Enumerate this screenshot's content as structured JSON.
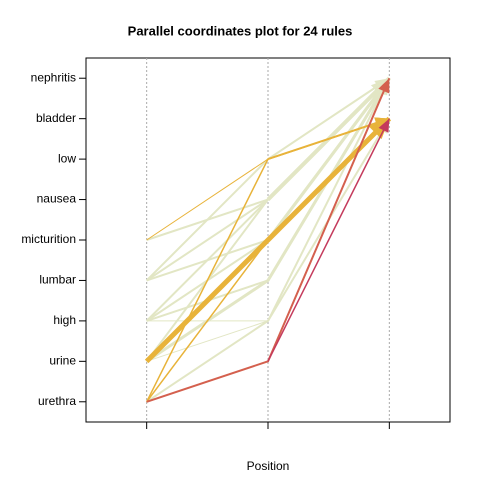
{
  "chart_data": {
    "type": "parallel",
    "title": "Parallel coordinates plot for 24 rules",
    "xlabel": "Position",
    "x": [
      1,
      2,
      3
    ],
    "xlim": [
      0.5,
      3.5
    ],
    "xticks": [
      1,
      2,
      3
    ],
    "ylim": [
      -0.5,
      8.5
    ],
    "yticks": [
      {
        "value": 0,
        "label": "urethra"
      },
      {
        "value": 1,
        "label": "urine"
      },
      {
        "value": 2,
        "label": "high"
      },
      {
        "value": 3,
        "label": "lumbar"
      },
      {
        "value": 4,
        "label": "micturition"
      },
      {
        "value": 5,
        "label": "nausea"
      },
      {
        "value": 6,
        "label": "low"
      },
      {
        "value": 7,
        "label": "bladder"
      },
      {
        "value": 8,
        "label": "nephritis"
      }
    ],
    "series": [
      {
        "color": "#e2e6c4",
        "width": 2,
        "values": [
          1,
          5,
          8
        ]
      },
      {
        "color": "#e2e6c4",
        "width": 2,
        "values": [
          2,
          5,
          8
        ]
      },
      {
        "color": "#e2e6c4",
        "width": 2,
        "values": [
          3,
          5,
          8
        ]
      },
      {
        "color": "#e2e6c4",
        "width": 3,
        "values": [
          1,
          3,
          8
        ]
      },
      {
        "color": "#e2e6c4",
        "width": 2,
        "values": [
          2,
          3,
          8
        ]
      },
      {
        "color": "#e2e6c4",
        "width": 2,
        "values": [
          3,
          4,
          8
        ]
      },
      {
        "color": "#e2e6c4",
        "width": 3,
        "values": [
          1,
          4,
          8
        ]
      },
      {
        "color": "#e2e6c4",
        "width": 1,
        "values": [
          2,
          2,
          8
        ]
      },
      {
        "color": "#e2e6c4",
        "width": 2,
        "values": [
          0,
          2,
          8
        ]
      },
      {
        "color": "#e2e6c4",
        "width": 1,
        "values": [
          1,
          2,
          7
        ]
      },
      {
        "color": "#e2e6c4",
        "width": 2,
        "values": [
          4,
          5,
          8
        ]
      },
      {
        "color": "#e2e6c4",
        "width": 2,
        "values": [
          3,
          6,
          8
        ]
      },
      {
        "color": "#e2e6c4",
        "width": 3,
        "values": [
          null,
          4,
          8
        ]
      },
      {
        "color": "#e2e6c4",
        "width": 2,
        "values": [
          2,
          4,
          7
        ]
      },
      {
        "color": "#e2e6c4",
        "width": 2,
        "values": [
          null,
          2,
          7
        ]
      },
      {
        "color": "#e2e6c4",
        "width": 2,
        "values": [
          null,
          3,
          8
        ]
      },
      {
        "color": "#e2e6c4",
        "width": 4,
        "values": [
          null,
          5,
          8
        ]
      },
      {
        "color": "#e8b33a",
        "width": 1,
        "values": [
          4,
          6,
          7
        ]
      },
      {
        "color": "#e8b33a",
        "width": 1.5,
        "values": [
          0,
          6,
          7
        ]
      },
      {
        "color": "#e8b33a",
        "width": 1.5,
        "values": [
          0,
          4,
          7
        ]
      },
      {
        "color": "#e8b33a",
        "width": 2,
        "values": [
          null,
          6,
          7
        ]
      },
      {
        "color": "#e8b33a",
        "width": 5,
        "values": [
          1,
          4,
          7
        ]
      },
      {
        "color": "#d4604e",
        "width": 2,
        "values": [
          0,
          1,
          8
        ]
      },
      {
        "color": "#c43a5c",
        "width": 1.5,
        "values": [
          null,
          1,
          7
        ]
      }
    ]
  }
}
